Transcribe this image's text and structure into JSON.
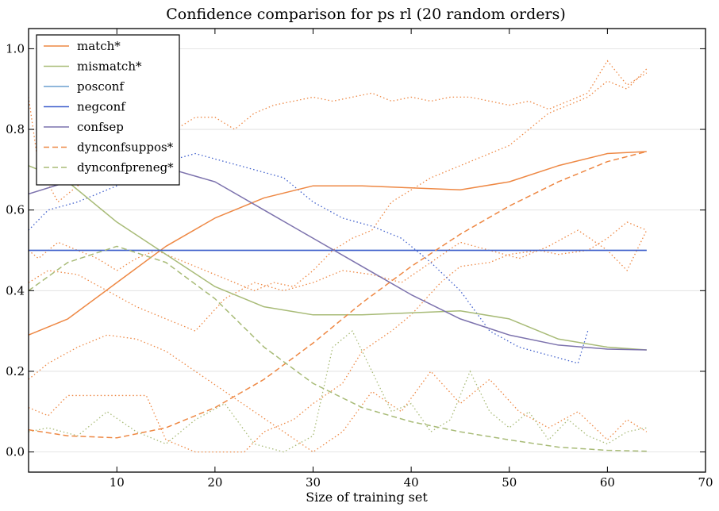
{
  "chart_data": {
    "type": "line",
    "title": "Confidence comparison for ps rl (20 random orders)",
    "xlabel": "Size of training set",
    "ylabel": "",
    "xlim": [
      1,
      70
    ],
    "ylim": [
      -0.05,
      1.05
    ],
    "xticks": [
      10,
      20,
      30,
      40,
      50,
      60,
      70
    ],
    "yticks": [
      0.0,
      0.2,
      0.4,
      0.6,
      0.8,
      1.0
    ],
    "ytick_labels": [
      "0.0",
      "0.2",
      "0.4",
      "0.6",
      "0.8",
      "1.0"
    ],
    "grid": "horizontal",
    "legend_position": "upper-left",
    "series": [
      {
        "name": "match*",
        "color": "#ee8844",
        "style": "solid",
        "x": [
          1,
          5,
          10,
          15,
          20,
          25,
          30,
          35,
          40,
          45,
          50,
          55,
          60,
          64
        ],
        "y": [
          0.29,
          0.33,
          0.42,
          0.51,
          0.58,
          0.63,
          0.66,
          0.66,
          0.655,
          0.65,
          0.67,
          0.71,
          0.74,
          0.745
        ]
      },
      {
        "name": "mismatch*",
        "color": "#a8bb77",
        "style": "solid",
        "x": [
          1,
          5,
          10,
          15,
          20,
          25,
          30,
          35,
          40,
          45,
          50,
          55,
          60,
          64
        ],
        "y": [
          0.71,
          0.67,
          0.57,
          0.49,
          0.41,
          0.36,
          0.34,
          0.34,
          0.345,
          0.35,
          0.33,
          0.28,
          0.26,
          0.253
        ]
      },
      {
        "name": "posconf",
        "color": "#6c9fcf",
        "style": "solid",
        "x": [
          1,
          64
        ],
        "y": [
          0.5,
          0.5
        ]
      },
      {
        "name": "negconf",
        "color": "#3f5fcc",
        "style": "solid",
        "x": [
          1,
          64
        ],
        "y": [
          0.5,
          0.5
        ]
      },
      {
        "name": "confsep",
        "color": "#7c72ad",
        "style": "solid",
        "x": [
          1,
          5,
          10,
          15,
          20,
          25,
          30,
          35,
          40,
          45,
          50,
          55,
          60,
          64
        ],
        "y": [
          0.64,
          0.67,
          0.72,
          0.705,
          0.67,
          0.6,
          0.53,
          0.46,
          0.39,
          0.33,
          0.29,
          0.265,
          0.255,
          0.253
        ]
      },
      {
        "name": "dynconfsuppos*",
        "color": "#ee8844",
        "style": "dashed",
        "x": [
          1,
          5,
          10,
          15,
          20,
          25,
          30,
          35,
          40,
          45,
          50,
          55,
          60,
          64
        ],
        "y": [
          0.055,
          0.04,
          0.035,
          0.06,
          0.11,
          0.18,
          0.27,
          0.37,
          0.46,
          0.54,
          0.61,
          0.67,
          0.72,
          0.745
        ]
      },
      {
        "name": "dynconfpreneg*",
        "color": "#a8bb77",
        "style": "dashed",
        "x": [
          1,
          5,
          10,
          15,
          20,
          25,
          30,
          35,
          40,
          45,
          50,
          55,
          60,
          64
        ],
        "y": [
          0.4,
          0.47,
          0.51,
          0.47,
          0.38,
          0.26,
          0.17,
          0.11,
          0.075,
          0.05,
          0.03,
          0.012,
          0.004,
          0.002
        ]
      }
    ],
    "background_series": [
      {
        "color": "#ee8844",
        "style": "dotted",
        "x": [
          1,
          2,
          4,
          6,
          8,
          10,
          12,
          14,
          16,
          18,
          20,
          22,
          24,
          26,
          28,
          30,
          32,
          34,
          36,
          38,
          40,
          42,
          44,
          46,
          48,
          50,
          52,
          54,
          56,
          58,
          60,
          62,
          64
        ],
        "y": [
          0.88,
          0.71,
          0.62,
          0.66,
          0.68,
          0.69,
          0.7,
          0.74,
          0.8,
          0.83,
          0.83,
          0.8,
          0.84,
          0.86,
          0.87,
          0.88,
          0.87,
          0.88,
          0.89,
          0.87,
          0.88,
          0.87,
          0.88,
          0.88,
          0.87,
          0.86,
          0.87,
          0.85,
          0.87,
          0.89,
          0.97,
          0.91,
          0.94
        ]
      },
      {
        "color": "#ee8844",
        "style": "dotted",
        "x": [
          1,
          2,
          4,
          6,
          8,
          10,
          12,
          14,
          16,
          18,
          20,
          22,
          24,
          26,
          28,
          30,
          32,
          34,
          36,
          38,
          40,
          42,
          44,
          46,
          48,
          50,
          52,
          54,
          56,
          58,
          60,
          62,
          64
        ],
        "y": [
          0.5,
          0.48,
          0.52,
          0.5,
          0.48,
          0.45,
          0.48,
          0.5,
          0.48,
          0.46,
          0.44,
          0.42,
          0.4,
          0.42,
          0.41,
          0.45,
          0.5,
          0.53,
          0.55,
          0.62,
          0.65,
          0.68,
          0.7,
          0.72,
          0.74,
          0.76,
          0.8,
          0.84,
          0.86,
          0.88,
          0.92,
          0.9,
          0.95
        ]
      },
      {
        "color": "#ee8844",
        "style": "dotted",
        "x": [
          1,
          3,
          5,
          8,
          10,
          13,
          15,
          18,
          20,
          23,
          25,
          28,
          30,
          33,
          35,
          38,
          40,
          43,
          45,
          48,
          50,
          53,
          55,
          58,
          60,
          62,
          64
        ],
        "y": [
          0.11,
          0.09,
          0.14,
          0.14,
          0.14,
          0.14,
          0.03,
          0.0,
          0.0,
          0.0,
          0.05,
          0.08,
          0.12,
          0.17,
          0.25,
          0.3,
          0.34,
          0.42,
          0.46,
          0.47,
          0.49,
          0.5,
          0.49,
          0.5,
          0.53,
          0.57,
          0.55
        ]
      },
      {
        "color": "#ee8844",
        "style": "dotted",
        "x": [
          1,
          3,
          6,
          9,
          12,
          15,
          18,
          21,
          24,
          27,
          30,
          33,
          36,
          39,
          42,
          45,
          48,
          51,
          54,
          57,
          60,
          62,
          64
        ],
        "y": [
          0.42,
          0.45,
          0.44,
          0.4,
          0.36,
          0.33,
          0.3,
          0.38,
          0.42,
          0.4,
          0.42,
          0.45,
          0.44,
          0.42,
          0.47,
          0.52,
          0.5,
          0.48,
          0.51,
          0.55,
          0.5,
          0.45,
          0.55
        ]
      },
      {
        "color": "#ee8844",
        "style": "dotted",
        "x": [
          1,
          3,
          6,
          9,
          12,
          15,
          18,
          21,
          24,
          27,
          30,
          33,
          36,
          39,
          42,
          45,
          48,
          51,
          54,
          57,
          60,
          62,
          64
        ],
        "y": [
          0.18,
          0.22,
          0.26,
          0.29,
          0.28,
          0.25,
          0.2,
          0.15,
          0.1,
          0.05,
          0.0,
          0.05,
          0.15,
          0.1,
          0.2,
          0.12,
          0.18,
          0.1,
          0.06,
          0.1,
          0.03,
          0.08,
          0.05
        ]
      },
      {
        "color": "#a8bb77",
        "style": "dotted",
        "x": [
          1,
          3,
          6,
          9,
          12,
          15,
          18,
          21,
          24,
          27,
          30,
          32,
          34,
          36,
          38,
          40,
          42,
          44,
          46,
          48,
          50,
          52,
          54,
          56,
          58,
          60,
          62,
          64
        ],
        "y": [
          0.05,
          0.06,
          0.04,
          0.1,
          0.05,
          0.02,
          0.08,
          0.12,
          0.02,
          0.0,
          0.04,
          0.26,
          0.3,
          0.2,
          0.1,
          0.12,
          0.05,
          0.08,
          0.2,
          0.1,
          0.06,
          0.1,
          0.03,
          0.08,
          0.04,
          0.02,
          0.05,
          0.06
        ]
      },
      {
        "color": "#3f5fcc",
        "style": "dotted",
        "x": [
          1,
          3,
          6,
          9,
          12,
          15,
          18,
          21,
          24,
          27,
          30,
          33,
          36,
          39,
          42,
          45,
          48,
          51,
          54,
          57,
          58
        ],
        "y": [
          0.55,
          0.6,
          0.62,
          0.65,
          0.68,
          0.72,
          0.74,
          0.72,
          0.7,
          0.68,
          0.62,
          0.58,
          0.56,
          0.53,
          0.47,
          0.4,
          0.3,
          0.26,
          0.24,
          0.22,
          0.3
        ]
      }
    ]
  }
}
